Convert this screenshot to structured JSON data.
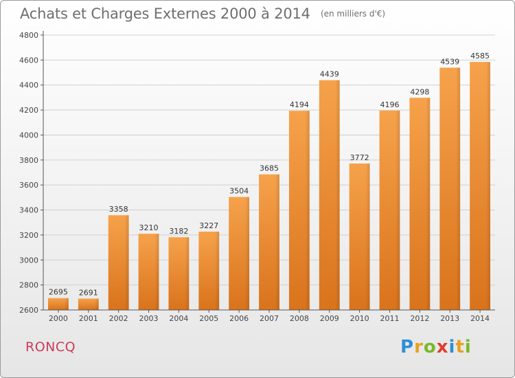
{
  "header": {
    "title": "Achats et Charges Externes 2000 à 2014",
    "subtitle": "(en milliers d'€)"
  },
  "commune": "RONCQ",
  "logo": {
    "letters": [
      "P",
      "r",
      "o",
      "x",
      "i",
      "t",
      "i"
    ],
    "colors": [
      "#2e8fd6",
      "#e8a020",
      "#7ab828",
      "#e23c2c",
      "#2e8fd6",
      "#e8a020",
      "#7ab828"
    ]
  },
  "colors": {
    "bar_top": "#f6a24b",
    "bar_bottom": "#d9731c",
    "grid": "#d0d0d0",
    "axis": "#555555"
  },
  "chart_data": {
    "type": "bar",
    "title": "Achats et Charges Externes 2000 à 2014",
    "subtitle": "(en milliers d'€)",
    "categories": [
      "2000",
      "2001",
      "2002",
      "2003",
      "2004",
      "2005",
      "2006",
      "2007",
      "2008",
      "2009",
      "2010",
      "2011",
      "2012",
      "2013",
      "2014"
    ],
    "values": [
      2695,
      2691,
      3358,
      3210,
      3182,
      3227,
      3504,
      3685,
      4194,
      4439,
      3772,
      4196,
      4298,
      4539,
      4585
    ],
    "ylim": [
      2600,
      4800
    ],
    "yticks": [
      2600,
      2800,
      3000,
      3200,
      3400,
      3600,
      3800,
      4000,
      4200,
      4400,
      4600,
      4800
    ],
    "grid": true,
    "xlabel": "",
    "ylabel": ""
  }
}
